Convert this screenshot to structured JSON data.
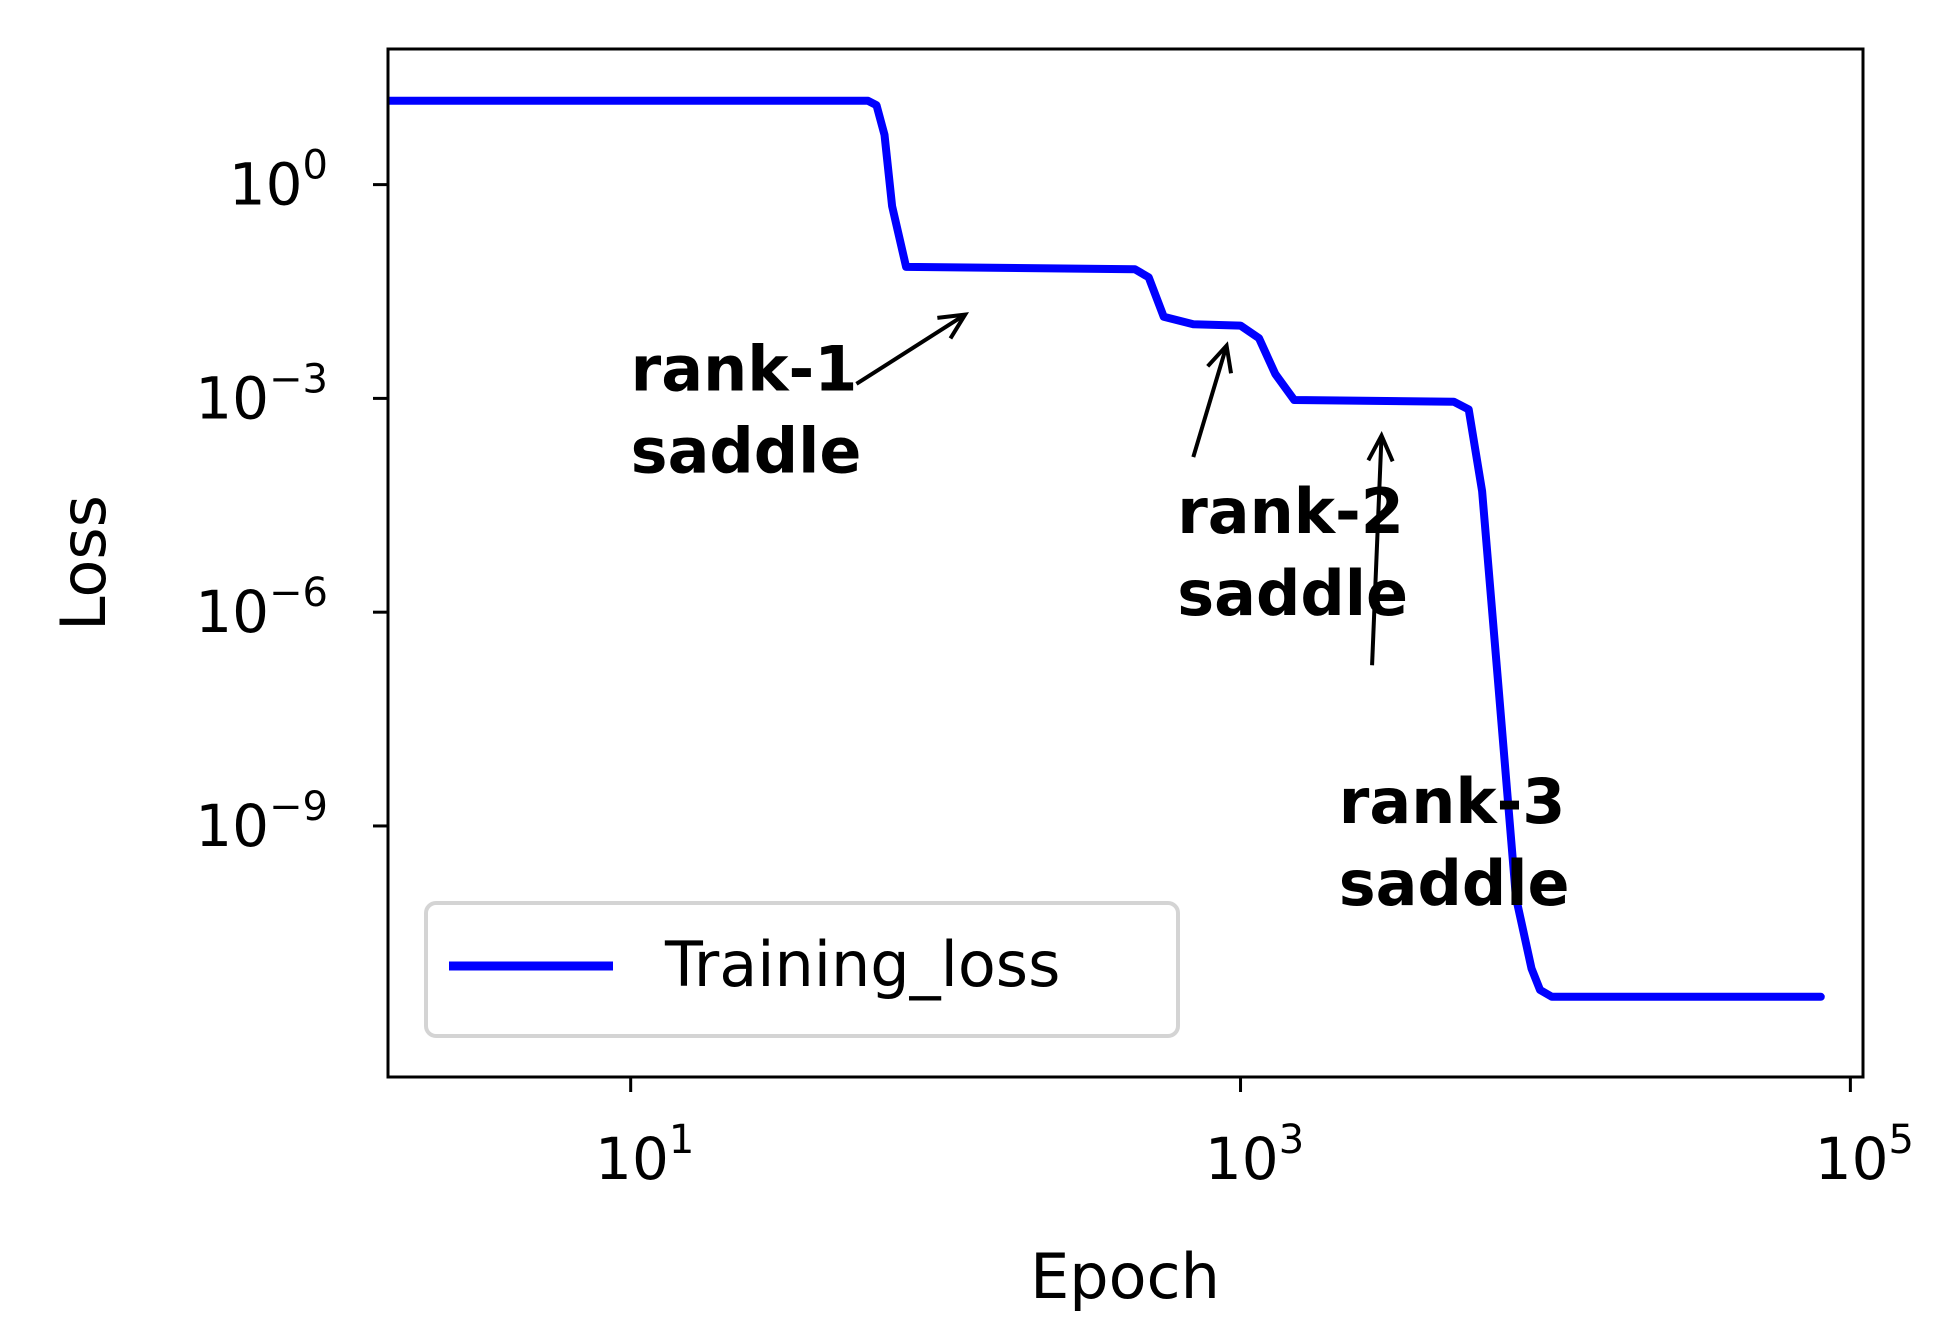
{
  "chart_data": {
    "type": "line",
    "title": "",
    "xlabel": "Epoch",
    "ylabel": "Loss",
    "xscale": "log",
    "yscale": "log",
    "xlim": [
      1.6,
      110000
    ],
    "ylim": [
      3e-13,
      80
    ],
    "grid": false,
    "legend_position": "lower-left",
    "xticks": [
      {
        "value": 10,
        "base": "10",
        "exp": "1"
      },
      {
        "value": 1000,
        "base": "10",
        "exp": "3"
      },
      {
        "value": 100000,
        "base": "10",
        "exp": "5"
      }
    ],
    "yticks": [
      {
        "value": 1,
        "base": "10",
        "exp": "0"
      },
      {
        "value": 0.001,
        "base": "10",
        "exp": "−3"
      },
      {
        "value": 1e-06,
        "base": "10",
        "exp": "−6"
      },
      {
        "value": 1e-09,
        "base": "10",
        "exp": "−9"
      }
    ],
    "series": [
      {
        "name": "Training_loss",
        "color": "#0000ff",
        "x": [
          1.6,
          60,
          64,
          68,
          72,
          80,
          450,
          500,
          560,
          700,
          1000,
          1150,
          1300,
          1500,
          5000,
          5600,
          6200,
          7000,
          8000,
          9000,
          9600,
          10500,
          80000
        ],
        "y": [
          15,
          15,
          13,
          5,
          0.5,
          0.07,
          0.065,
          0.05,
          0.014,
          0.011,
          0.0105,
          0.007,
          0.0022,
          0.00095,
          0.0009,
          0.0007,
          5e-05,
          1e-07,
          1e-10,
          1e-11,
          5e-12,
          4e-12,
          4e-12
        ]
      }
    ],
    "annotations": [
      {
        "lines": [
          "rank-1",
          "saddle"
        ],
        "text_x": 10,
        "text_y": 0.0013,
        "arrow_from": [
          55,
          0.0016
        ],
        "arrow_to": [
          125,
          0.015
        ]
      },
      {
        "lines": [
          "rank-2",
          "saddle"
        ],
        "text_x": 620,
        "text_y": 1.3e-05,
        "arrow_from": [
          700,
          0.00015
        ],
        "arrow_to": [
          900,
          0.0055
        ]
      },
      {
        "lines": [
          "rank-3",
          "saddle"
        ],
        "text_x": 2100,
        "text_y": 1.1e-09,
        "arrow_from": [
          2700,
          1.8e-07
        ],
        "arrow_to": [
          2900,
          0.0003
        ]
      }
    ]
  }
}
